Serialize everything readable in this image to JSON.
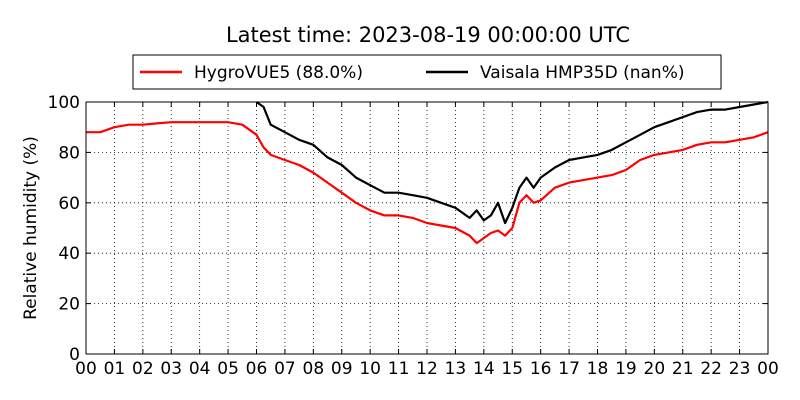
{
  "chart_data": {
    "type": "line",
    "title": "Latest time: 2023-08-19 00:00:00 UTC",
    "xlabel": "",
    "ylabel": "Relative humidity (%)",
    "xlim": [
      0,
      24
    ],
    "ylim": [
      0,
      100
    ],
    "x_tick_labels": [
      "00",
      "01",
      "02",
      "03",
      "04",
      "05",
      "06",
      "07",
      "08",
      "09",
      "10",
      "11",
      "12",
      "13",
      "14",
      "15",
      "16",
      "17",
      "18",
      "19",
      "20",
      "21",
      "22",
      "23",
      "00"
    ],
    "y_ticks": [
      0,
      20,
      40,
      60,
      80,
      100
    ],
    "grid": true,
    "legend_position": "top",
    "series": [
      {
        "name": "HygroVUE5 (88.0%)",
        "color": "#ff0000",
        "x": [
          0,
          0.5,
          1,
          1.5,
          2,
          2.5,
          3,
          3.5,
          4,
          4.5,
          5,
          5.5,
          6,
          6.25,
          6.5,
          7,
          7.5,
          8,
          8.5,
          9,
          9.5,
          10,
          10.5,
          11,
          11.5,
          12,
          12.5,
          13,
          13.5,
          13.75,
          14,
          14.25,
          14.5,
          14.75,
          15,
          15.25,
          15.5,
          15.75,
          16,
          16.5,
          17,
          17.5,
          18,
          18.5,
          19,
          19.5,
          20,
          20.5,
          21,
          21.5,
          22,
          22.5,
          23,
          23.5,
          24
        ],
        "y": [
          88,
          88,
          90,
          91,
          91,
          91.5,
          92,
          92,
          92,
          92,
          92,
          91,
          87,
          82,
          79,
          77,
          75,
          72,
          68,
          64,
          60,
          57,
          55,
          55,
          54,
          52,
          51,
          50,
          47,
          44,
          46,
          48,
          49,
          47,
          50,
          60,
          63,
          60,
          61,
          66,
          68,
          69,
          70,
          71,
          73,
          77,
          79,
          80,
          81,
          83,
          84,
          84,
          85,
          86,
          88
        ]
      },
      {
        "name": "Vaisala HMP35D (nan%)",
        "color": "#000000",
        "x": [
          6,
          6.25,
          6.5,
          7,
          7.5,
          8,
          8.5,
          9,
          9.5,
          10,
          10.5,
          11,
          11.5,
          12,
          12.5,
          13,
          13.5,
          13.75,
          14,
          14.25,
          14.5,
          14.75,
          15,
          15.25,
          15.5,
          15.75,
          16,
          16.5,
          17,
          17.5,
          18,
          18.5,
          19,
          19.5,
          20,
          20.5,
          21,
          21.5,
          22,
          22.5,
          23,
          23.5,
          24
        ],
        "y": [
          100,
          98,
          91,
          88,
          85,
          83,
          78,
          75,
          70,
          67,
          64,
          64,
          63,
          62,
          60,
          58,
          54,
          57,
          53,
          55,
          60,
          52,
          58,
          66,
          70,
          66,
          70,
          74,
          77,
          78,
          79,
          81,
          84,
          87,
          90,
          92,
          94,
          96,
          97,
          97,
          98,
          99,
          100
        ]
      }
    ]
  }
}
